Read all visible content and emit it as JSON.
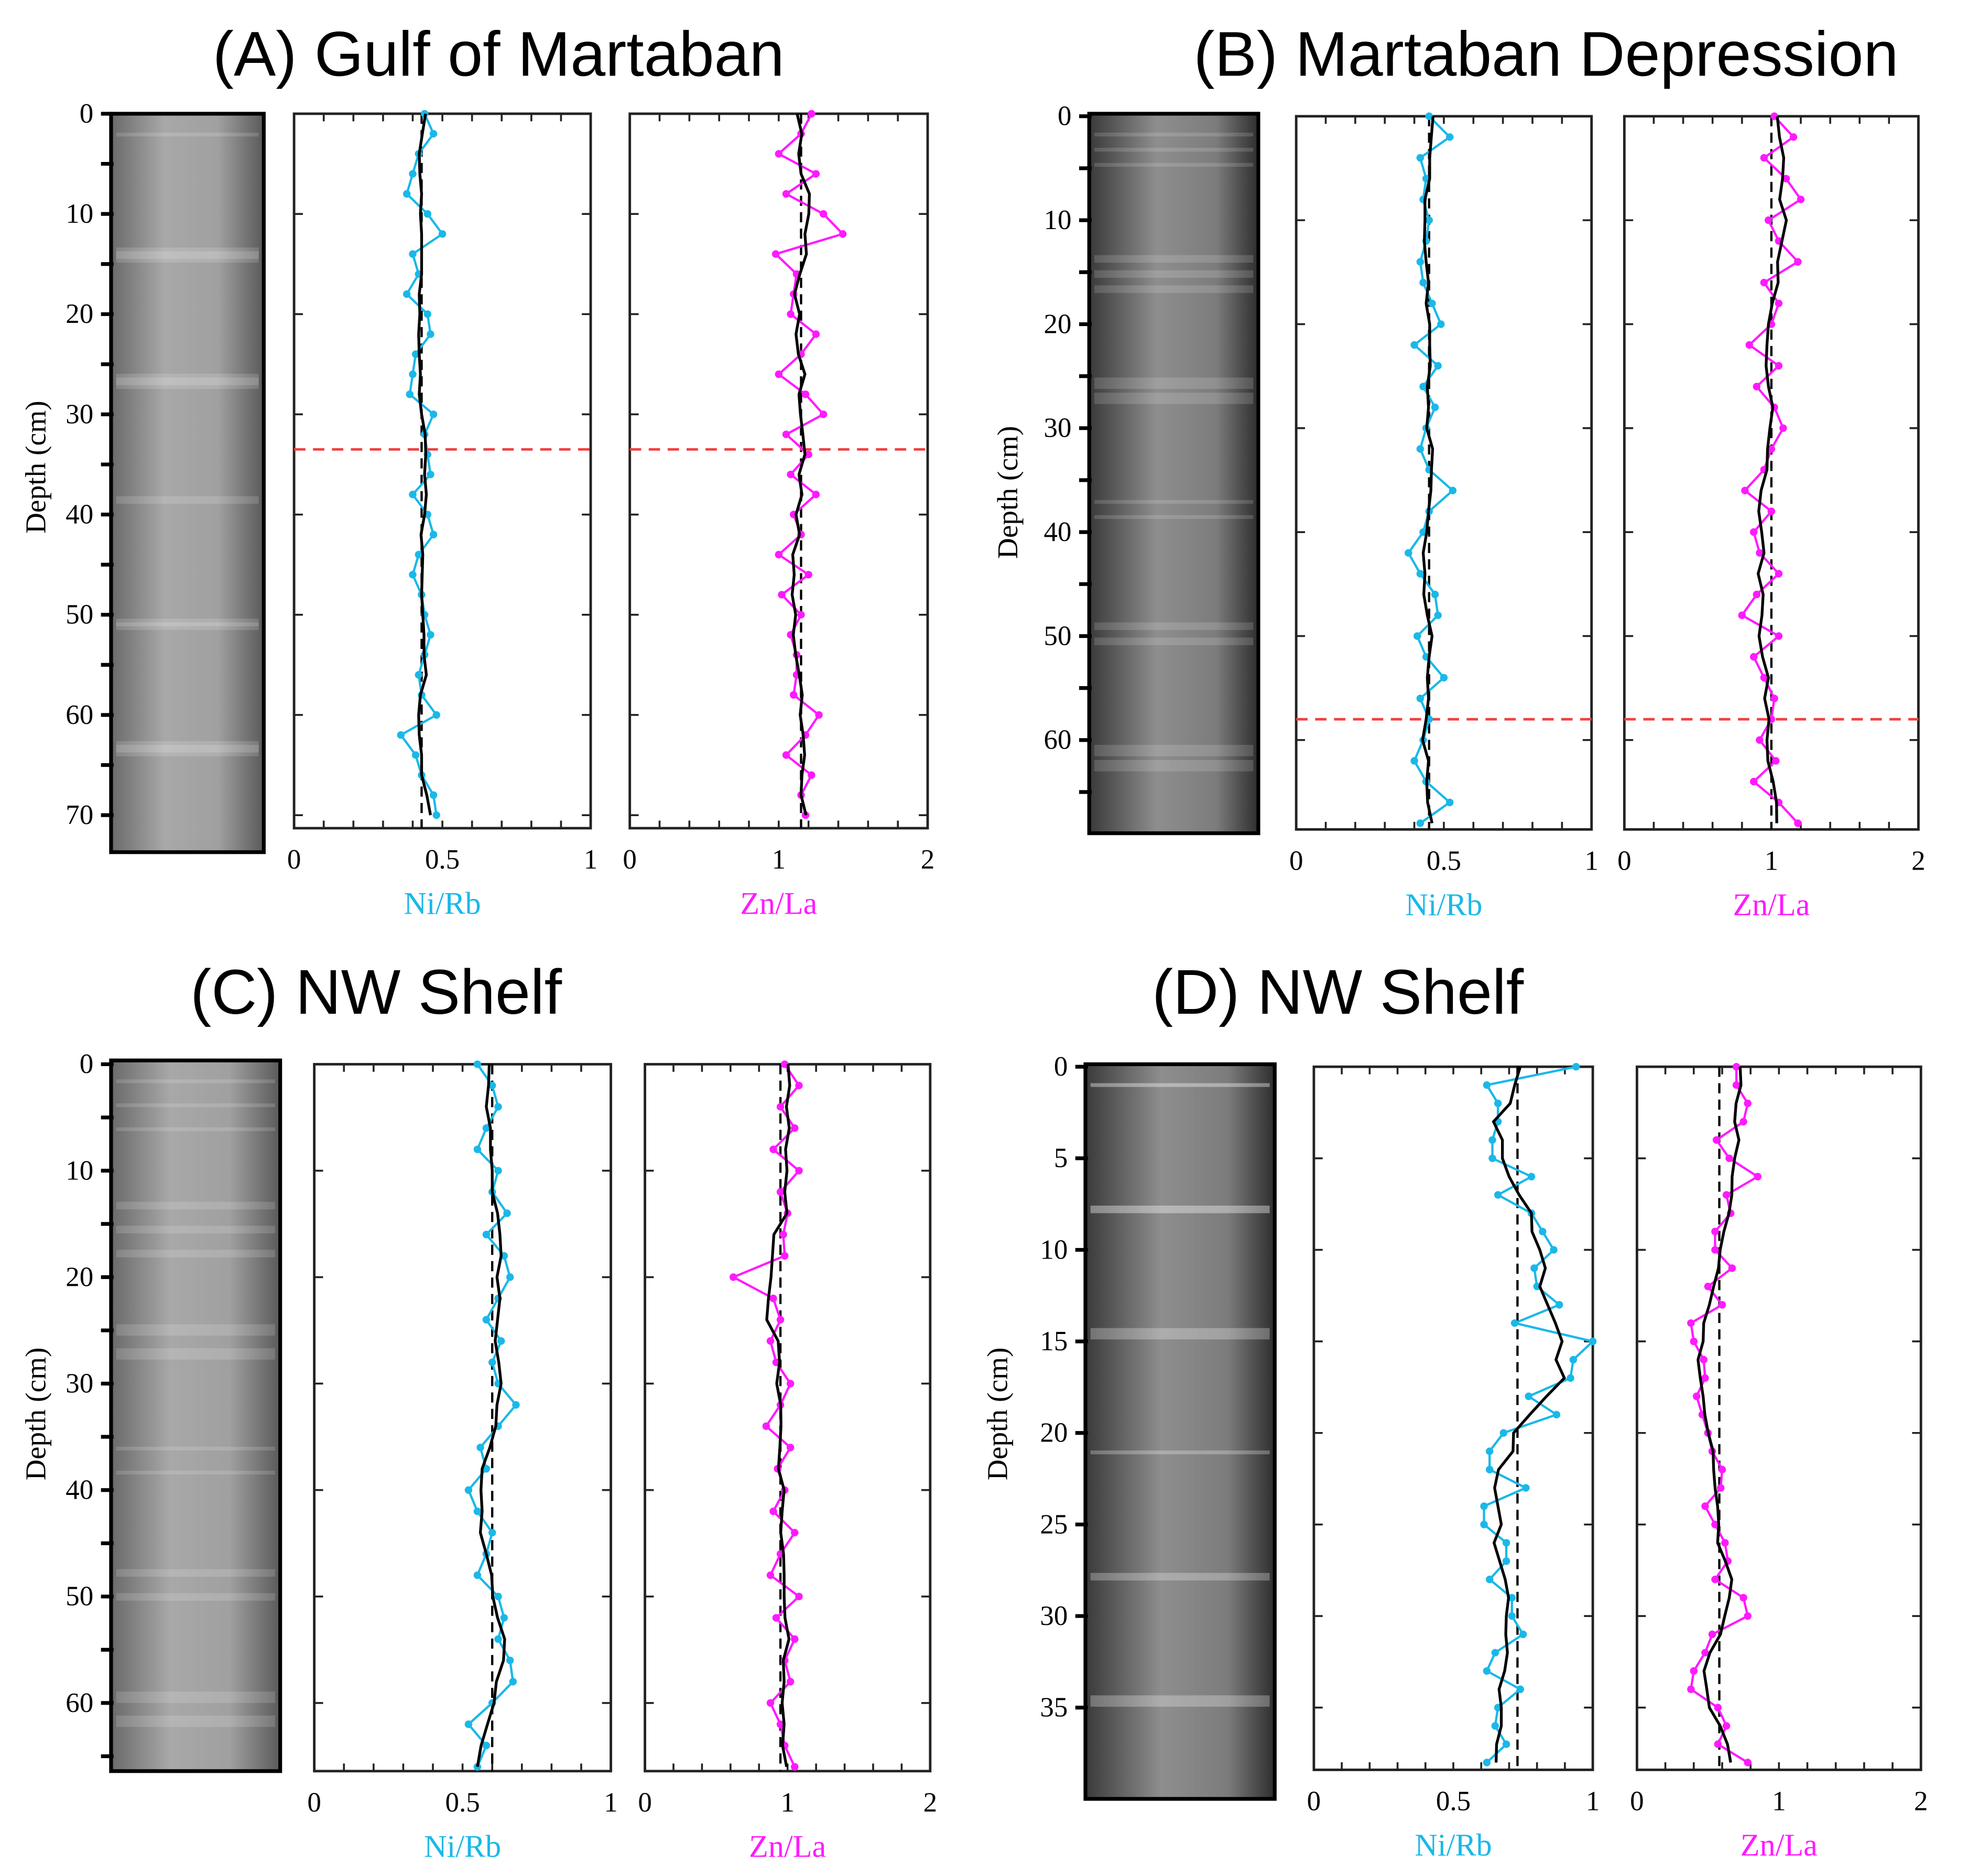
{
  "chart_data": [
    {
      "type": "line",
      "title": "(A) Gulf of Martaban",
      "ylabel": "Depth (cm)",
      "ylim": [
        0,
        71.3
      ],
      "yticks": [
        0,
        10,
        20,
        30,
        40,
        50,
        60,
        70
      ],
      "yminor_step": 5,
      "red_line_depth": 33.5,
      "plots": [
        {
          "xlabel": "Ni/Rb",
          "color": "#1ab8e8",
          "xlim": [
            0,
            1
          ],
          "xticks": [
            "0",
            "0.5",
            "1"
          ],
          "mean": 0.43,
          "depth_start": 0,
          "depth_step": 2,
          "values": [
            0.44,
            0.47,
            0.42,
            0.4,
            0.38,
            0.45,
            0.5,
            0.4,
            0.42,
            0.38,
            0.45,
            0.46,
            0.41,
            0.4,
            0.39,
            0.47,
            0.44,
            0.45,
            0.46,
            0.4,
            0.45,
            0.47,
            0.42,
            0.4,
            0.43,
            0.44,
            0.46,
            0.44,
            0.42,
            0.43,
            0.48,
            0.36,
            0.41,
            0.43,
            0.47,
            0.48
          ]
        },
        {
          "xlabel": "Zn/La",
          "color": "#ff1aff",
          "xlim": [
            0,
            2
          ],
          "xticks": [
            "0",
            "1",
            "2"
          ],
          "mean": 1.15,
          "depth_start": 0,
          "depth_step": 2,
          "values": [
            1.22,
            1.15,
            1.0,
            1.25,
            1.05,
            1.3,
            1.43,
            0.98,
            1.12,
            1.1,
            1.08,
            1.25,
            1.15,
            1.0,
            1.18,
            1.3,
            1.05,
            1.2,
            1.08,
            1.25,
            1.1,
            1.15,
            1.0,
            1.2,
            1.02,
            1.15,
            1.08,
            1.12,
            1.12,
            1.1,
            1.27,
            1.18,
            1.05,
            1.22,
            1.15,
            1.18
          ]
        }
      ]
    },
    {
      "type": "line",
      "title": "(B) Martaban Depression",
      "ylabel": "Depth (cm)",
      "ylim": [
        0,
        68.6
      ],
      "yticks": [
        0,
        10,
        20,
        30,
        40,
        50,
        60
      ],
      "yminor_step": 5,
      "red_line_depth": 58,
      "plots": [
        {
          "xlabel": "Ni/Rb",
          "color": "#1ab8e8",
          "xlim": [
            0,
            1
          ],
          "xticks": [
            "0",
            "0.5",
            "1"
          ],
          "mean": 0.45,
          "depth_start": 0,
          "depth_step": 2,
          "values": [
            0.45,
            0.52,
            0.42,
            0.44,
            0.43,
            0.45,
            0.44,
            0.42,
            0.43,
            0.46,
            0.49,
            0.4,
            0.48,
            0.43,
            0.47,
            0.44,
            0.42,
            0.45,
            0.53,
            0.45,
            0.43,
            0.38,
            0.42,
            0.47,
            0.48,
            0.41,
            0.44,
            0.5,
            0.42,
            0.45,
            0.43,
            0.4,
            0.44,
            0.52,
            0.42
          ]
        },
        {
          "xlabel": "Zn/La",
          "color": "#ff1aff",
          "xlim": [
            0,
            2
          ],
          "xticks": [
            "0",
            "1",
            "2"
          ],
          "mean": 1.0,
          "depth_start": 0,
          "depth_step": 2,
          "values": [
            1.02,
            1.15,
            0.95,
            1.1,
            1.2,
            0.98,
            1.05,
            1.18,
            0.95,
            1.05,
            1.0,
            0.85,
            1.05,
            0.9,
            1.02,
            1.08,
            1.0,
            0.95,
            0.82,
            1.0,
            0.88,
            0.92,
            1.05,
            0.9,
            0.8,
            1.05,
            0.88,
            0.95,
            1.02,
            1.0,
            0.92,
            1.03,
            0.88,
            1.05,
            1.18
          ]
        }
      ]
    },
    {
      "type": "line",
      "title": "(C) NW Shelf",
      "ylabel": "Depth (cm)",
      "ylim": [
        0,
        66.4
      ],
      "yticks": [
        0,
        10,
        20,
        30,
        40,
        50,
        60
      ],
      "yminor_step": 5,
      "red_line_depth": null,
      "plots": [
        {
          "xlabel": "Ni/Rb",
          "color": "#1ab8e8",
          "xlim": [
            0,
            1
          ],
          "xticks": [
            "0",
            "0.5",
            "1"
          ],
          "mean": 0.6,
          "depth_start": 0,
          "depth_step": 2,
          "values": [
            0.55,
            0.6,
            0.62,
            0.58,
            0.55,
            0.62,
            0.6,
            0.65,
            0.58,
            0.64,
            0.66,
            0.62,
            0.58,
            0.63,
            0.6,
            0.62,
            0.68,
            0.62,
            0.56,
            0.58,
            0.52,
            0.55,
            0.6,
            0.58,
            0.55,
            0.62,
            0.64,
            0.62,
            0.66,
            0.67,
            0.6,
            0.52,
            0.58,
            0.55
          ]
        },
        {
          "xlabel": "Zn/La",
          "color": "#ff1aff",
          "xlim": [
            0,
            2
          ],
          "xticks": [
            "0",
            "1",
            "2"
          ],
          "mean": 0.95,
          "depth_start": 0,
          "depth_step": 2,
          "values": [
            0.98,
            1.08,
            0.95,
            1.05,
            0.9,
            1.08,
            0.95,
            1.0,
            0.97,
            0.98,
            0.62,
            0.9,
            0.95,
            0.88,
            0.92,
            1.02,
            0.95,
            0.85,
            1.02,
            0.93,
            0.98,
            0.9,
            1.05,
            0.95,
            0.88,
            1.08,
            0.92,
            1.05,
            0.98,
            1.02,
            0.88,
            0.95,
            0.98,
            1.05
          ]
        }
      ]
    },
    {
      "type": "line",
      "title": "(D) NW Shelf",
      "ylabel": "Depth (cm)",
      "ylim": [
        0,
        38.4
      ],
      "yticks": [
        0,
        5,
        10,
        15,
        20,
        25,
        30,
        35
      ],
      "yminor_step": 5,
      "red_line_depth": null,
      "plots": [
        {
          "xlabel": "Ni/Rb",
          "color": "#1ab8e8",
          "xlim": [
            0,
            1
          ],
          "xticks": [
            "0",
            "0.5",
            "1"
          ],
          "mean": 0.73,
          "depth_start": 0,
          "depth_step": 1,
          "values": [
            0.94,
            0.62,
            0.66,
            0.66,
            0.64,
            0.64,
            0.78,
            0.66,
            0.78,
            0.82,
            0.86,
            0.79,
            0.8,
            0.88,
            0.72,
            1.0,
            0.93,
            0.92,
            0.77,
            0.87,
            0.68,
            0.63,
            0.63,
            0.76,
            0.61,
            0.61,
            0.69,
            0.69,
            0.63,
            0.71,
            0.71,
            0.75,
            0.65,
            0.62,
            0.74,
            0.66,
            0.65,
            0.69,
            0.62
          ]
        },
        {
          "xlabel": "Zn/La",
          "color": "#ff1aff",
          "xlim": [
            0,
            2
          ],
          "xticks": [
            "0",
            "1",
            "2"
          ],
          "mean": 0.58,
          "depth_start": 0,
          "depth_step": 1,
          "values": [
            0.7,
            0.7,
            0.78,
            0.75,
            0.56,
            0.65,
            0.85,
            0.63,
            0.66,
            0.55,
            0.55,
            0.67,
            0.5,
            0.6,
            0.38,
            0.4,
            0.47,
            0.48,
            0.42,
            0.46,
            0.5,
            0.53,
            0.6,
            0.59,
            0.48,
            0.55,
            0.62,
            0.64,
            0.55,
            0.75,
            0.78,
            0.53,
            0.48,
            0.4,
            0.38,
            0.57,
            0.63,
            0.57,
            0.78
          ]
        }
      ]
    }
  ]
}
